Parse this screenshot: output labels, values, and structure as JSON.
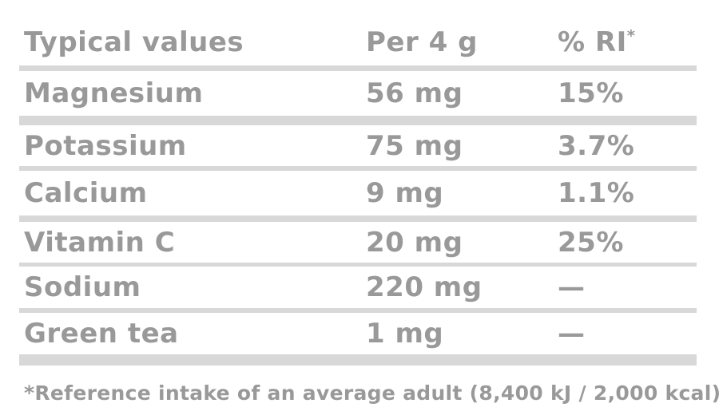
{
  "table": {
    "headers": [
      {
        "label": "Typical values"
      },
      {
        "label": "Per 4 g"
      },
      {
        "label": "% RI",
        "sup": "*"
      }
    ],
    "rows": [
      {
        "name": "Magnesium",
        "amount": "56 mg",
        "ri": "15%"
      },
      {
        "name": "Potassium",
        "amount": "75 mg",
        "ri": "3.7%"
      },
      {
        "name": "Calcium",
        "amount": "9 mg",
        "ri": "1.1%"
      },
      {
        "name": "Vitamin C",
        "amount": "20 mg",
        "ri": "25%"
      },
      {
        "name": "Sodium",
        "amount": "220 mg",
        "ri": "—"
      },
      {
        "name": "Green tea",
        "amount": "1 mg",
        "ri": "—"
      }
    ],
    "footnote": "*Reference intake of an average adult (8,400 kJ / 2,000 kcal)"
  },
  "colors": {
    "text": "#999999",
    "divider": "#d8d8d8",
    "background": "#ffffff"
  }
}
